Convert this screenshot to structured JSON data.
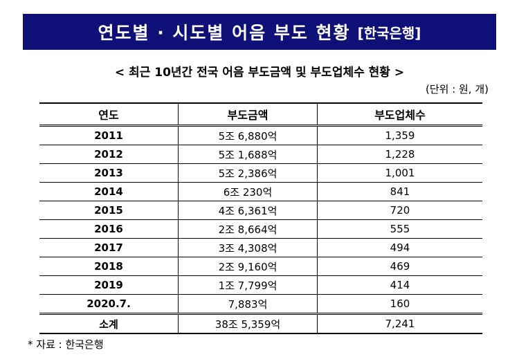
{
  "banner": {
    "title": "연도별 · 시도별 어음 부도 현황",
    "source": "[한국은행]"
  },
  "subtitle": "< 최근 10년간 전국 어음 부도금액 및 부도업체수 현황 >",
  "unit": "(단위 : 원, 개)",
  "table": {
    "headers": [
      "연도",
      "부도금액",
      "부도업체수"
    ],
    "rows": [
      [
        "2011",
        "5조 6,880억",
        "1,359"
      ],
      [
        "2012",
        "5조 1,688억",
        "1,228"
      ],
      [
        "2013",
        "5조 2,386억",
        "1,001"
      ],
      [
        "2014",
        "6조 230억",
        "841"
      ],
      [
        "2015",
        "4조 6,361억",
        "720"
      ],
      [
        "2016",
        "2조 8,664억",
        "555"
      ],
      [
        "2017",
        "3조 4,308억",
        "494"
      ],
      [
        "2018",
        "2조 9,160억",
        "469"
      ],
      [
        "2019",
        "1조 7,799억",
        "414"
      ],
      [
        "2020.7.",
        "7,883억",
        "160"
      ]
    ],
    "total": [
      "소계",
      "38조 5,359억",
      "7,241"
    ]
  },
  "note": "* 자료 : 한국은행"
}
